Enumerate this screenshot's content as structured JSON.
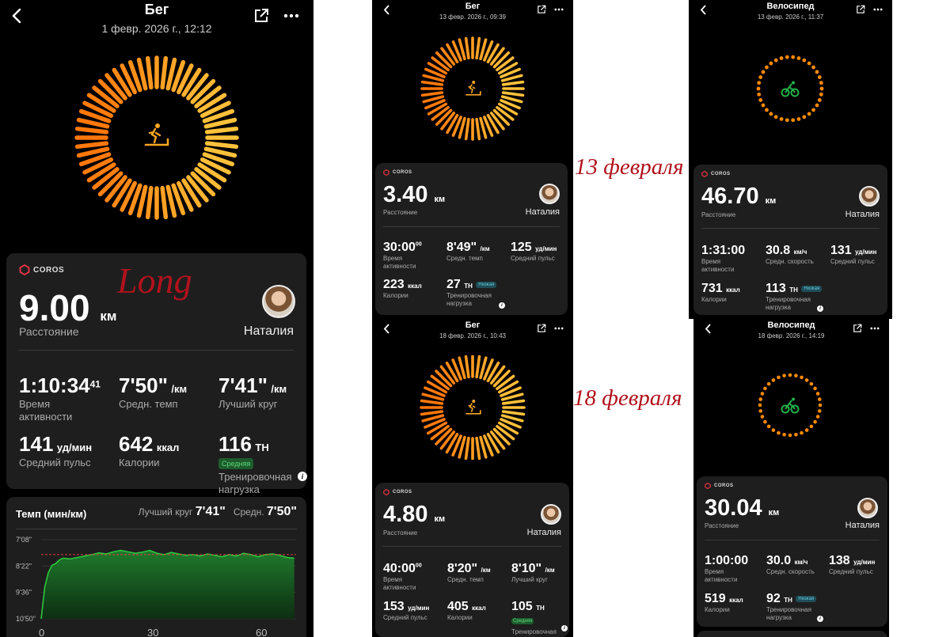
{
  "colors": {
    "ring_run_outer": "#ff6a00",
    "ring_run_inner": "#ffc23a",
    "ring_bike": "#ff8a00",
    "bike_icon": "#22b04a",
    "accent_handwriting": "#b1121c",
    "badge_mid": "#5fd77a",
    "badge_low": "#62c7d8",
    "pace_line": "#2ecc40"
  },
  "annotations": {
    "long": "Long",
    "feb13": "13 февраля",
    "feb18": "18 февраля"
  },
  "s1": {
    "title": "Бег",
    "date": "1 февр. 2026 г., 12:12",
    "brand": "COROS",
    "distance": "9.00",
    "distance_unit": "км",
    "distance_label": "Расстояние",
    "user": "Наталия",
    "time": "1:10:34",
    "time_sup": "41",
    "time_label": "Время активности",
    "pace": "7'50\"",
    "pace_unit": "/км",
    "pace_label": "Средн. темп",
    "best": "7'41\"",
    "best_unit": "/км",
    "best_label": "Лучший круг",
    "hr": "141",
    "hr_unit": "уд/мин",
    "hr_label": "Средний пульс",
    "cal": "642",
    "cal_unit": "ккал",
    "cal_label": "Калории",
    "load": "116",
    "load_unit": "ТН",
    "load_badge": "Средняя",
    "load_label": "Тренировочная нагрузка",
    "chart_title": "Темп (мин/км)",
    "best_lap_label": "Лучший круг",
    "best_lap_value": "7'41\"",
    "avg_label": "Средн.",
    "avg_value": "7'50\"",
    "info_glyph": "i",
    "y_ticks": [
      "7'08\"",
      "8'22\"",
      "9'36\"",
      "10'50\""
    ],
    "x_ticks": [
      "0",
      "30",
      "60"
    ]
  },
  "chart_data": {
    "type": "area",
    "title": "Темп (мин/км)",
    "x_ticks": [
      "0",
      "30",
      "60"
    ],
    "y_ticks": [
      "7'08\"",
      "8'22\"",
      "9'36\"",
      "10'50\""
    ],
    "xlim": [
      0,
      70.5
    ],
    "ylim_seconds": [
      650,
      428
    ],
    "avg_line": "7'50\"",
    "x": [
      0,
      1,
      2,
      3,
      4,
      5,
      6,
      8,
      10,
      12,
      14,
      16,
      18,
      20,
      22,
      24,
      26,
      28,
      30,
      32,
      34,
      36,
      38,
      40,
      42,
      44,
      46,
      48,
      50,
      52,
      54,
      56,
      58,
      60,
      62,
      64,
      66,
      68,
      70
    ],
    "y_seconds": [
      650,
      560,
      520,
      500,
      495,
      485,
      480,
      482,
      478,
      474,
      470,
      465,
      468,
      462,
      458,
      462,
      466,
      463,
      458,
      466,
      470,
      464,
      468,
      472,
      470,
      474,
      468,
      472,
      476,
      470,
      474,
      466,
      470,
      476,
      470,
      468,
      472,
      478,
      480
    ]
  },
  "s2": {
    "title": "Бег",
    "date": "13 февр. 2026 г., 09:39",
    "brand": "COROS",
    "distance": "3.40",
    "distance_unit": "км",
    "distance_label": "Расстояние",
    "user": "Наталия",
    "time": "30:00",
    "time_sup": "00",
    "time_label": "Время активности",
    "pace": "8'49\"",
    "pace_unit": "/км",
    "pace_label": "Средн. темп",
    "hr": "125",
    "hr_unit": "уд/мин",
    "hr_label": "Средний пульс",
    "cal": "223",
    "cal_unit": "ккал",
    "cal_label": "Калории",
    "load": "27",
    "load_unit": "ТН",
    "load_badge": "Низкая",
    "load_label": "Тренировочная нагрузка",
    "info_glyph": "i"
  },
  "s3": {
    "title": "Велосипед",
    "date": "13 февр. 2026 г., 11:37",
    "brand": "COROS",
    "distance": "46.70",
    "distance_unit": "км",
    "distance_label": "Расстояние",
    "user": "Наталия",
    "time": "1:31:00",
    "time_label": "Время активности",
    "speed": "30.8",
    "speed_unit": "км/ч",
    "speed_label": "Средн. скорость",
    "hr": "131",
    "hr_unit": "уд/мин",
    "hr_label": "Средний пульс",
    "cal": "731",
    "cal_unit": "ккал",
    "cal_label": "Калории",
    "load": "113",
    "load_unit": "ТН",
    "load_badge": "Низкая",
    "load_label": "Тренировочная нагрузка",
    "info_glyph": "i"
  },
  "s4": {
    "title": "Бег",
    "date": "18 февр. 2026 г., 10:43",
    "brand": "COROS",
    "distance": "4.80",
    "distance_unit": "км",
    "distance_label": "Расстояние",
    "user": "Наталия",
    "time": "40:00",
    "time_sup": "00",
    "time_label": "Время активности",
    "pace": "8'20\"",
    "pace_unit": "/км",
    "pace_label": "Средн. темп",
    "best": "8'10\"",
    "best_unit": "/км",
    "best_label": "Лучший круг",
    "hr": "153",
    "hr_unit": "уд/мин",
    "hr_label": "Средний пульс",
    "cal": "405",
    "cal_unit": "ккал",
    "cal_label": "Калории",
    "load": "105",
    "load_unit": "ТН",
    "load_badge": "Средняя",
    "load_label": "Тренировочная нагрузка",
    "info_glyph": "i"
  },
  "s5": {
    "title": "Велосипед",
    "date": "18 февр. 2026 г., 14:19",
    "brand": "COROS",
    "distance": "30.04",
    "distance_unit": "км",
    "distance_label": "Расстояние",
    "user": "Наталия",
    "time": "1:00:00",
    "time_label": "Время активности",
    "speed": "30.0",
    "speed_unit": "км/ч",
    "speed_label": "Средн. скорость",
    "hr": "138",
    "hr_unit": "уд/мин",
    "hr_label": "Средний пульс",
    "cal": "519",
    "cal_unit": "ккал",
    "cal_label": "Калории",
    "load": "92",
    "load_unit": "ТН",
    "load_badge": "Низкая",
    "load_label": "Тренировочная нагрузка",
    "info_glyph": "i"
  }
}
